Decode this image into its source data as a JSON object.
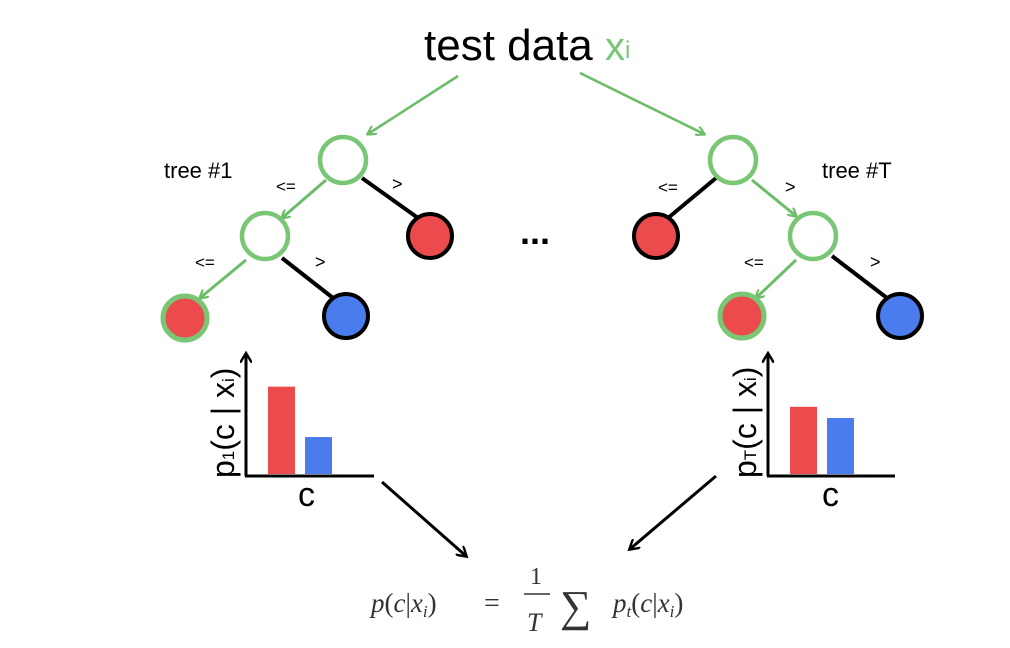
{
  "title": {
    "text": "test data ",
    "x_symbol": "x",
    "x_subscript": "i"
  },
  "trees": [
    {
      "label": "tree #1",
      "edge_le_root": "<=",
      "edge_gt_root": ">",
      "edge_le_child": "<=",
      "edge_gt_child": ">",
      "ylabel_p": "p",
      "ylabel_sub": "1",
      "ylabel_rest": "(c | x",
      "ylabel_xsub": "i",
      "ylabel_close": ")",
      "xlabel": "c",
      "bars": [
        {
          "class": "red",
          "value": 0.78
        },
        {
          "class": "blue",
          "value": 0.33
        }
      ]
    },
    {
      "label": "tree #T",
      "edge_le_root": "<=",
      "edge_gt_root": ">",
      "edge_le_child": "<=",
      "edge_gt_child": ">",
      "ylabel_p": "p",
      "ylabel_sub": "T",
      "ylabel_rest": "(c | x",
      "ylabel_xsub": "i",
      "ylabel_close": ")",
      "xlabel": "c",
      "bars": [
        {
          "class": "red",
          "value": 0.6
        },
        {
          "class": "blue",
          "value": 0.5
        }
      ]
    }
  ],
  "ellipsis": "...",
  "formula": {
    "lhs_p": "p",
    "lhs_open": "(",
    "lhs_c": "c",
    "lhs_bar": "|",
    "lhs_x": "x",
    "lhs_xsub": "i",
    "lhs_close": ")",
    "equals": "=",
    "frac_num": "1",
    "frac_den": "T",
    "sum": "∑",
    "rhs_p": "p",
    "rhs_psub": "t",
    "rhs_open": "(",
    "rhs_c": "c",
    "rhs_bar": "|",
    "rhs_x": "x",
    "rhs_xsub": "i",
    "rhs_close": ")"
  },
  "colors": {
    "green": "#79c675",
    "green_stroke": "#6cbd68",
    "red": "#ec4b4d",
    "blue": "#4b7cee",
    "black": "#000000",
    "formula": "#333333"
  }
}
